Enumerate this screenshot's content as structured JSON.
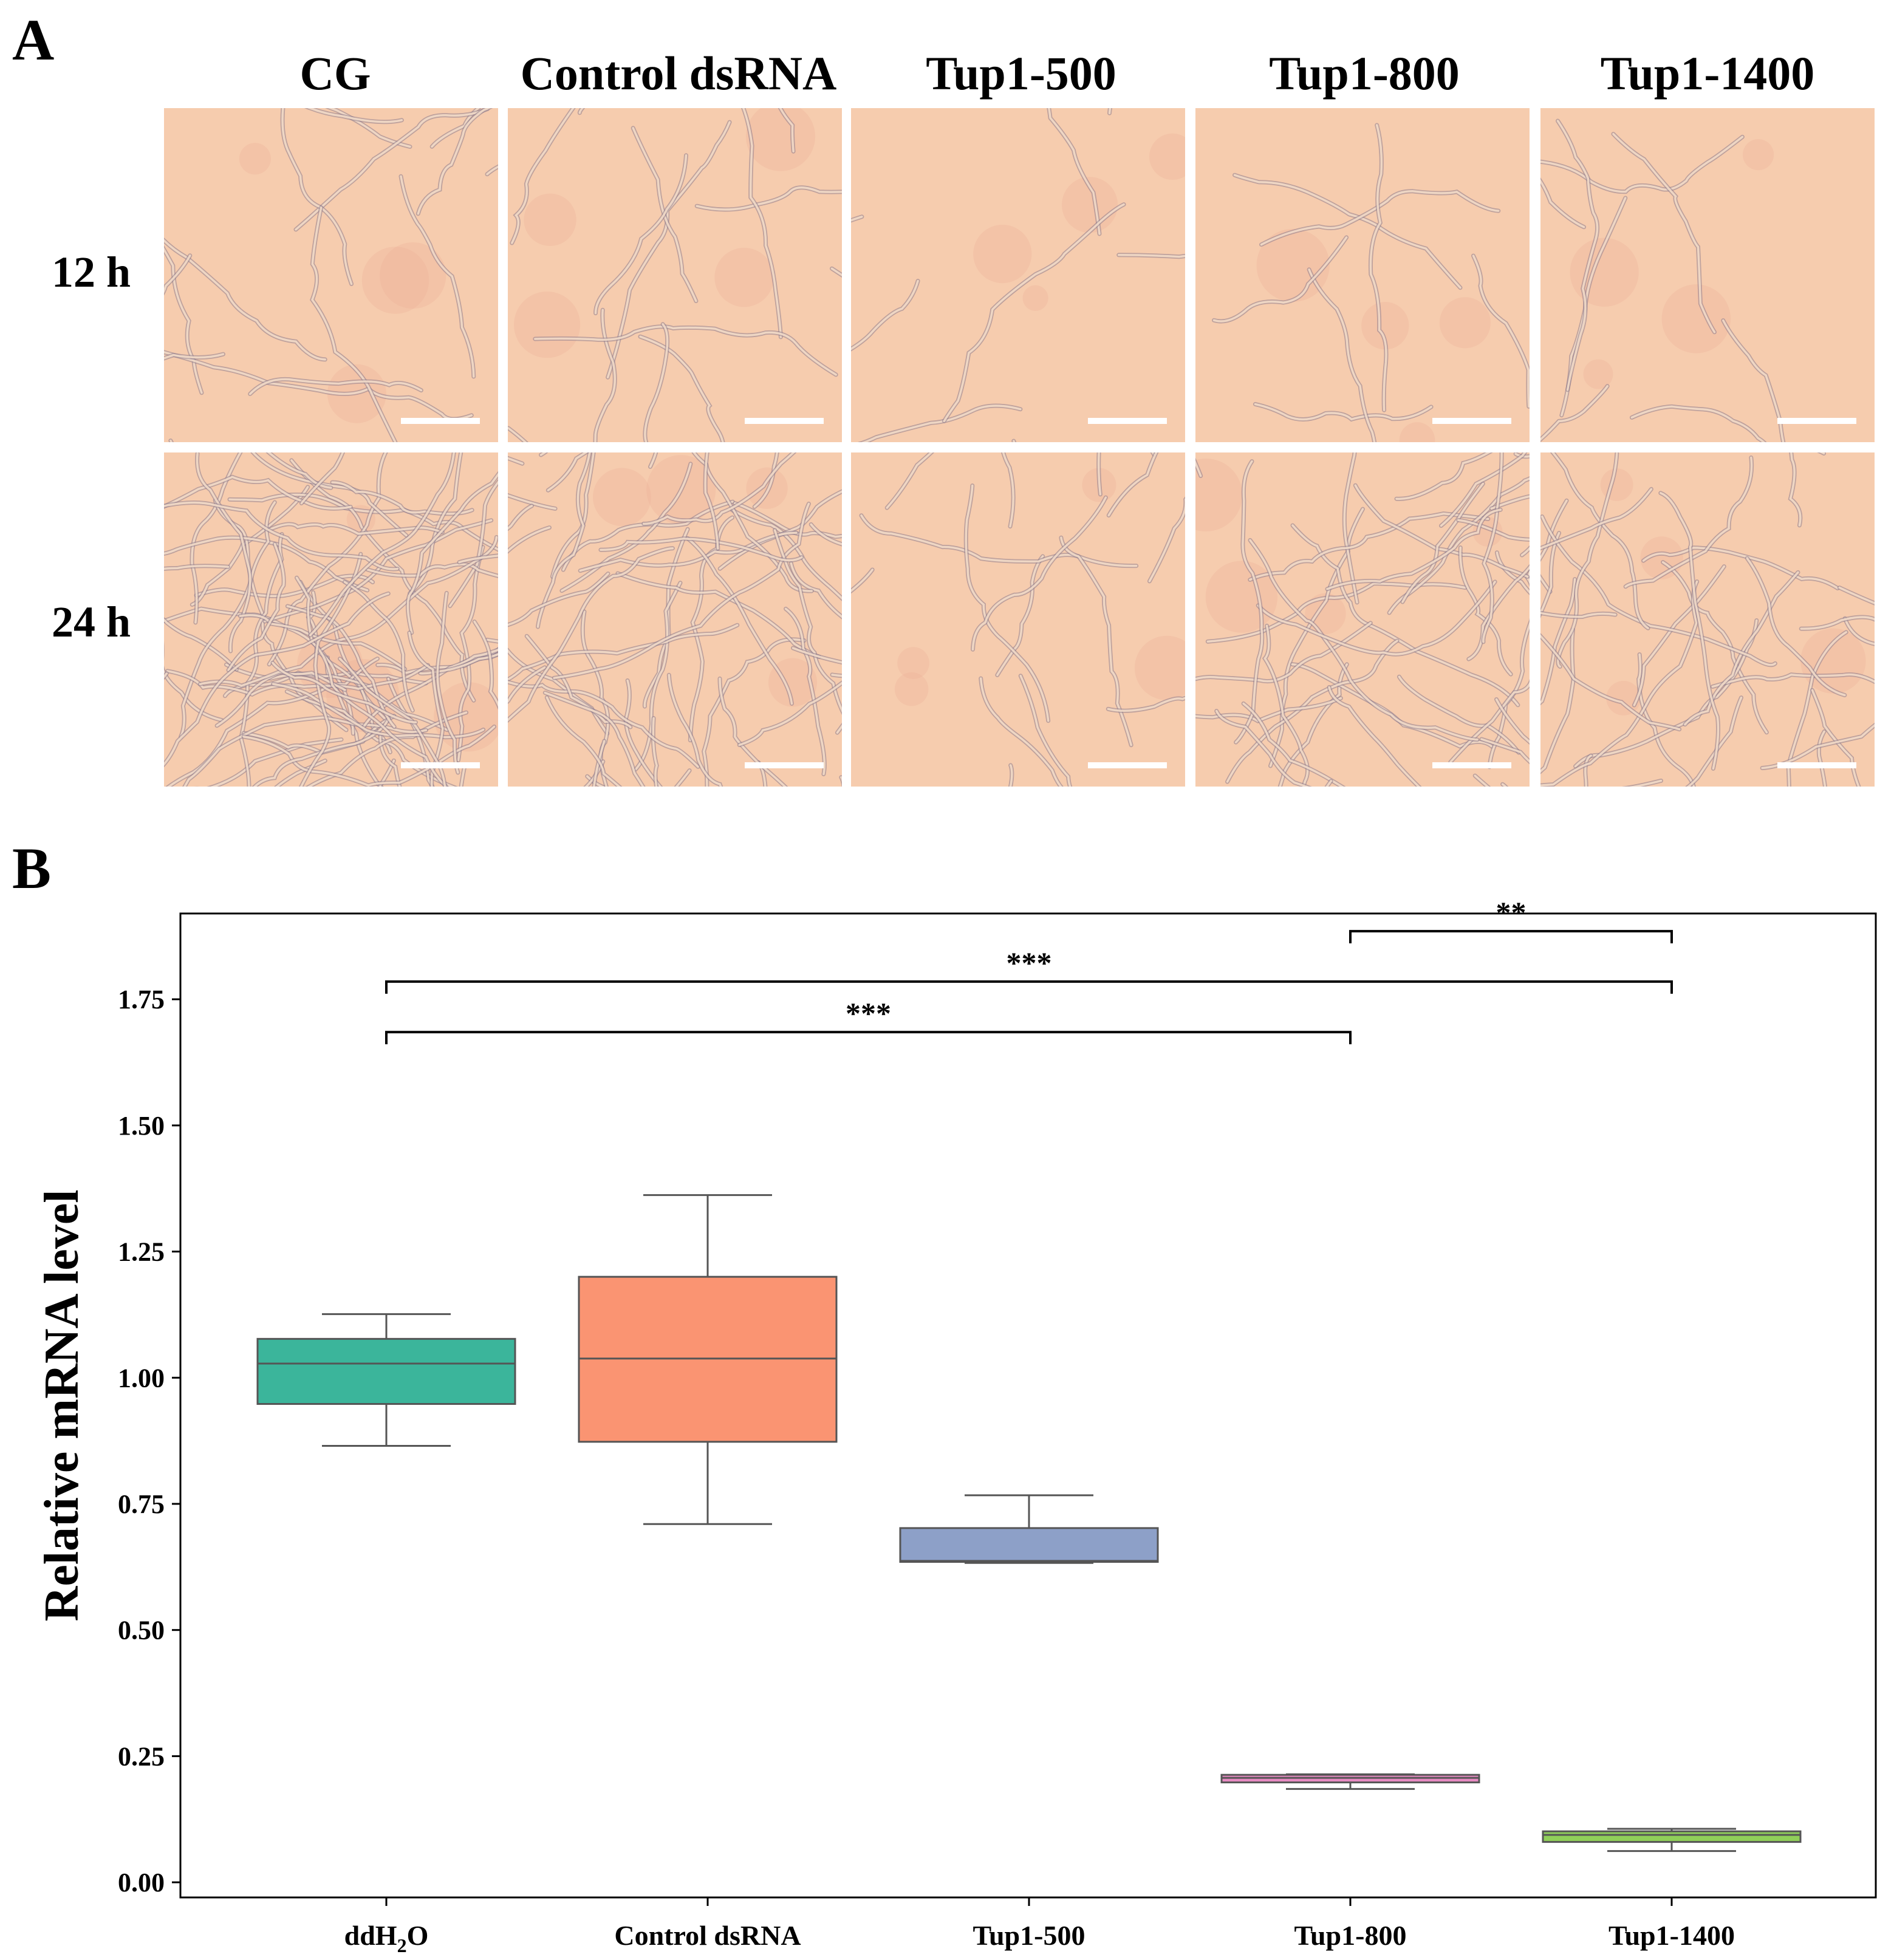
{
  "panel_a": {
    "label": "A",
    "column_labels": [
      "CG",
      "Control dsRNA",
      "Tup1-500",
      "Tup1-800",
      "Tup1-1400"
    ],
    "row_labels": [
      "12 h",
      "24 h"
    ],
    "image_bg_color": "#f6ccae",
    "hypha_color": "#b9a6b8"
  },
  "panel_b": {
    "label": "B"
  },
  "chart_data": {
    "type": "box",
    "ylabel": "Relative mRNA level",
    "xlabel": "",
    "ylim": [
      -0.03,
      1.92
    ],
    "yticks": [
      0.0,
      0.25,
      0.5,
      0.75,
      1.0,
      1.25,
      1.5,
      1.75
    ],
    "ytick_labels": [
      "0.00",
      "0.25",
      "0.50",
      "0.75",
      "1.00",
      "1.25",
      "1.50",
      "1.75"
    ],
    "categories": [
      "ddH2O",
      "Control dsRNA",
      "Tup1-500",
      "Tup1-800",
      "Tup1-1400"
    ],
    "boxes": [
      {
        "name": "ddH2O",
        "whisker_low": 0.865,
        "q1": 0.948,
        "median": 1.028,
        "q3": 1.077,
        "whisker_high": 1.126,
        "color": "#3bb59b"
      },
      {
        "name": "Control dsRNA",
        "whisker_low": 0.71,
        "q1": 0.873,
        "median": 1.038,
        "q3": 1.2,
        "whisker_high": 1.362,
        "color": "#fa9472"
      },
      {
        "name": "Tup1-500",
        "whisker_low": 0.633,
        "q1": 0.635,
        "median": 0.637,
        "q3": 0.702,
        "whisker_high": 0.767,
        "color": "#8da0c8"
      },
      {
        "name": "Tup1-800",
        "whisker_low": 0.185,
        "q1": 0.198,
        "median": 0.207,
        "q3": 0.213,
        "whisker_high": 0.214,
        "color": "#e78ac2"
      },
      {
        "name": "Tup1-1400",
        "whisker_low": 0.062,
        "q1": 0.08,
        "median": 0.094,
        "q3": 0.101,
        "whisker_high": 0.106,
        "color": "#8fcf59"
      }
    ],
    "significance": [
      {
        "from": 0,
        "to": 3,
        "y": 1.685,
        "label": "***"
      },
      {
        "from": 0,
        "to": 4,
        "y": 1.785,
        "label": "***"
      },
      {
        "from": 3,
        "to": 4,
        "y": 1.885,
        "label": "**"
      }
    ]
  }
}
